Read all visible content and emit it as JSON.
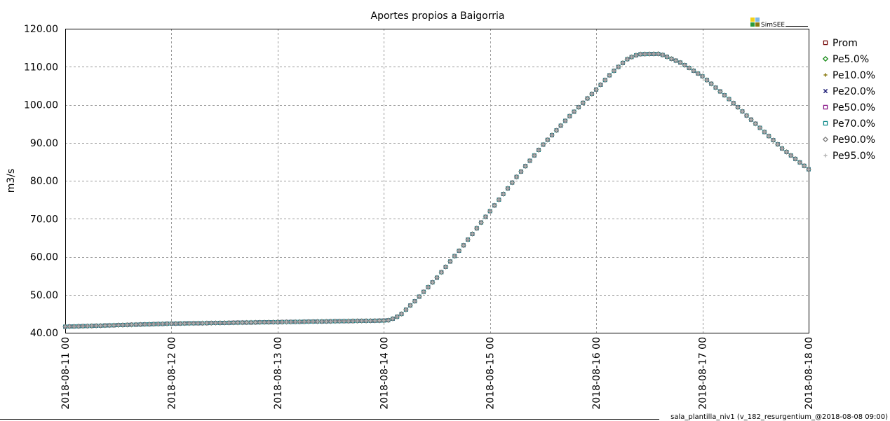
{
  "chart_data": {
    "type": "line",
    "title": "Aportes propios a Baigorria",
    "ylabel": "m3/s",
    "xlabel": "",
    "ylim": [
      40,
      120
    ],
    "yticks": [
      "40.00",
      "50.00",
      "60.00",
      "70.00",
      "80.00",
      "90.00",
      "100.00",
      "110.00",
      "120.00"
    ],
    "xticks": [
      "2018-08-11 00",
      "2018-08-12 00",
      "2018-08-13 00",
      "2018-08-14 00",
      "2018-08-15 00",
      "2018-08-16 00",
      "2018-08-17 00",
      "2018-08-18 00"
    ],
    "grid": true,
    "legend_position": "right",
    "x_day_offsets": [
      0,
      0.25,
      0.5,
      0.75,
      1.0,
      1.5,
      2.0,
      2.5,
      3.0,
      3.05,
      3.15,
      3.3,
      3.5,
      3.75,
      4.0,
      4.25,
      4.5,
      4.75,
      5.0,
      5.15,
      5.25,
      5.3,
      5.4,
      5.6,
      5.8,
      6.0,
      6.25,
      6.5,
      6.75,
      7.0
    ],
    "series": [
      {
        "name": "Prom",
        "marker": "square",
        "color": "#7a1010",
        "values": [
          41.6,
          41.8,
          42.0,
          42.2,
          42.4,
          42.6,
          42.8,
          43.0,
          43.2,
          43.3,
          44.5,
          48.5,
          54.5,
          63.0,
          72.0,
          81.0,
          89.5,
          97.0,
          104.0,
          108.5,
          111.0,
          112.2,
          113.3,
          113.4,
          111.0,
          107.5,
          101.5,
          95.0,
          88.5,
          83.0
        ]
      },
      {
        "name": "Pe5.0%",
        "marker": "diamond",
        "color": "#1a8c1a",
        "values": [
          41.6,
          41.8,
          42.0,
          42.2,
          42.4,
          42.6,
          42.8,
          43.0,
          43.2,
          43.3,
          44.5,
          48.5,
          54.5,
          63.0,
          72.0,
          81.0,
          89.5,
          97.0,
          104.0,
          108.5,
          111.0,
          112.2,
          113.3,
          113.4,
          111.0,
          107.5,
          101.5,
          95.0,
          88.5,
          83.0
        ]
      },
      {
        "name": "Pe10.0%",
        "marker": "plus",
        "color": "#8a7a10",
        "values": [
          41.6,
          41.8,
          42.0,
          42.2,
          42.4,
          42.6,
          42.8,
          43.0,
          43.2,
          43.3,
          44.5,
          48.5,
          54.5,
          63.0,
          72.0,
          81.0,
          89.5,
          97.0,
          104.0,
          108.5,
          111.0,
          112.2,
          113.3,
          113.4,
          111.0,
          107.5,
          101.5,
          95.0,
          88.5,
          83.0
        ]
      },
      {
        "name": "Pe20.0%",
        "marker": "x",
        "color": "#141470",
        "values": [
          41.6,
          41.8,
          42.0,
          42.2,
          42.4,
          42.6,
          42.8,
          43.0,
          43.2,
          43.3,
          44.5,
          48.5,
          54.5,
          63.0,
          72.0,
          81.0,
          89.5,
          97.0,
          104.0,
          108.5,
          111.0,
          112.2,
          113.3,
          113.4,
          111.0,
          107.5,
          101.5,
          95.0,
          88.5,
          83.0
        ]
      },
      {
        "name": "Pe50.0%",
        "marker": "square",
        "color": "#8a1a8a",
        "values": [
          41.6,
          41.8,
          42.0,
          42.2,
          42.4,
          42.6,
          42.8,
          43.0,
          43.2,
          43.3,
          44.5,
          48.5,
          54.5,
          63.0,
          72.0,
          81.0,
          89.5,
          97.0,
          104.0,
          108.5,
          111.0,
          112.2,
          113.3,
          113.4,
          111.0,
          107.5,
          101.5,
          95.0,
          88.5,
          83.0
        ]
      },
      {
        "name": "Pe70.0%",
        "marker": "square",
        "color": "#128c8c",
        "values": [
          41.6,
          41.8,
          42.0,
          42.2,
          42.4,
          42.6,
          42.8,
          43.0,
          43.2,
          43.3,
          44.5,
          48.5,
          54.5,
          63.0,
          72.0,
          81.0,
          89.5,
          97.0,
          104.0,
          108.5,
          111.0,
          112.2,
          113.3,
          113.4,
          111.0,
          107.5,
          101.5,
          95.0,
          88.5,
          83.0
        ]
      },
      {
        "name": "Pe90.0%",
        "marker": "diamond",
        "color": "#7f7f7f",
        "values": [
          41.6,
          41.8,
          42.0,
          42.2,
          42.4,
          42.6,
          42.8,
          43.0,
          43.2,
          43.3,
          44.5,
          48.5,
          54.5,
          63.0,
          72.0,
          81.0,
          89.5,
          97.0,
          104.0,
          108.5,
          111.0,
          112.2,
          113.3,
          113.4,
          111.0,
          107.5,
          101.5,
          95.0,
          88.5,
          83.0
        ]
      },
      {
        "name": "Pe95.0%",
        "marker": "plus",
        "color": "#b4b4b4",
        "values": [
          41.6,
          41.8,
          42.0,
          42.2,
          42.4,
          42.6,
          42.8,
          43.0,
          43.2,
          43.3,
          44.5,
          48.5,
          54.5,
          63.0,
          72.0,
          81.0,
          89.5,
          97.0,
          104.0,
          108.5,
          111.0,
          112.2,
          113.3,
          113.4,
          111.0,
          107.5,
          101.5,
          95.0,
          88.5,
          83.0
        ]
      }
    ]
  },
  "logo": {
    "text": "SimSEE",
    "colors": [
      "#f2d21a",
      "#7fb8e8",
      "#2a9a3a",
      "#8a7a10"
    ]
  },
  "footer": {
    "text": "sala_plantilla_niv1 (v_182_resurgentium_@2018-08-08 09:00)"
  }
}
